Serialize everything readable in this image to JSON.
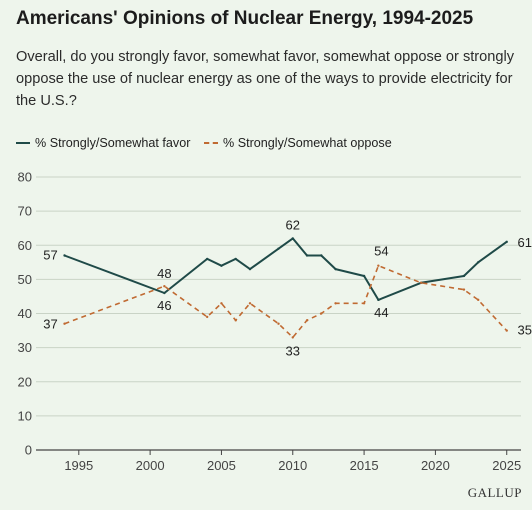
{
  "header": {
    "title": "Americans' Opinions of Nuclear Energy, 1994-2025",
    "subtitle": "Overall, do you strongly favor, somewhat favor, somewhat oppose or strongly oppose the use of nuclear energy as one of the ways to provide electricity for the U.S.?"
  },
  "source": "GALLUP",
  "colors": {
    "favor": "#1f4a48",
    "oppose": "#c06a32",
    "background": "#eef5ec",
    "grid": "#c9d3c6",
    "axis": "#444444"
  },
  "chart_data": {
    "type": "line",
    "title": "Americans' Opinions of Nuclear Energy, 1994-2025",
    "xlabel": "",
    "ylabel": "",
    "xlim": [
      1992,
      2026
    ],
    "ylim": [
      0,
      80
    ],
    "x_ticks": [
      1995,
      2000,
      2005,
      2010,
      2015,
      2020,
      2025
    ],
    "y_ticks": [
      0,
      10,
      20,
      30,
      40,
      50,
      60,
      70,
      80
    ],
    "grid": "horizontal",
    "legend": "top-left",
    "series": [
      {
        "name": "% Strongly/Somewhat favor",
        "style": "solid",
        "x": [
          1994,
          2001,
          2004,
          2005,
          2006,
          2007,
          2009,
          2010,
          2011,
          2012,
          2013,
          2015,
          2016,
          2019,
          2022,
          2023,
          2025
        ],
        "y": [
          57,
          46,
          56,
          54,
          56,
          53,
          59,
          62,
          57,
          57,
          53,
          51,
          44,
          49,
          51,
          55,
          61
        ],
        "labels": [
          {
            "x": 1994,
            "y": 57,
            "text": "57"
          },
          {
            "x": 2001,
            "y": 46,
            "text": "46"
          },
          {
            "x": 2010,
            "y": 62,
            "text": "62"
          },
          {
            "x": 2016,
            "y": 44,
            "text": "44"
          },
          {
            "x": 2025,
            "y": 61,
            "text": "61"
          }
        ]
      },
      {
        "name": "% Strongly/Somewhat oppose",
        "style": "dashed",
        "x": [
          1994,
          2001,
          2004,
          2005,
          2006,
          2007,
          2009,
          2010,
          2011,
          2012,
          2013,
          2015,
          2016,
          2019,
          2022,
          2023,
          2025
        ],
        "y": [
          37,
          48,
          39,
          43,
          38,
          43,
          37,
          33,
          38,
          40,
          43,
          43,
          54,
          49,
          47,
          44,
          35
        ],
        "labels": [
          {
            "x": 1994,
            "y": 37,
            "text": "37"
          },
          {
            "x": 2001,
            "y": 48,
            "text": "48"
          },
          {
            "x": 2010,
            "y": 33,
            "text": "33"
          },
          {
            "x": 2016,
            "y": 54,
            "text": "54"
          },
          {
            "x": 2025,
            "y": 35,
            "text": "35"
          }
        ]
      }
    ]
  }
}
